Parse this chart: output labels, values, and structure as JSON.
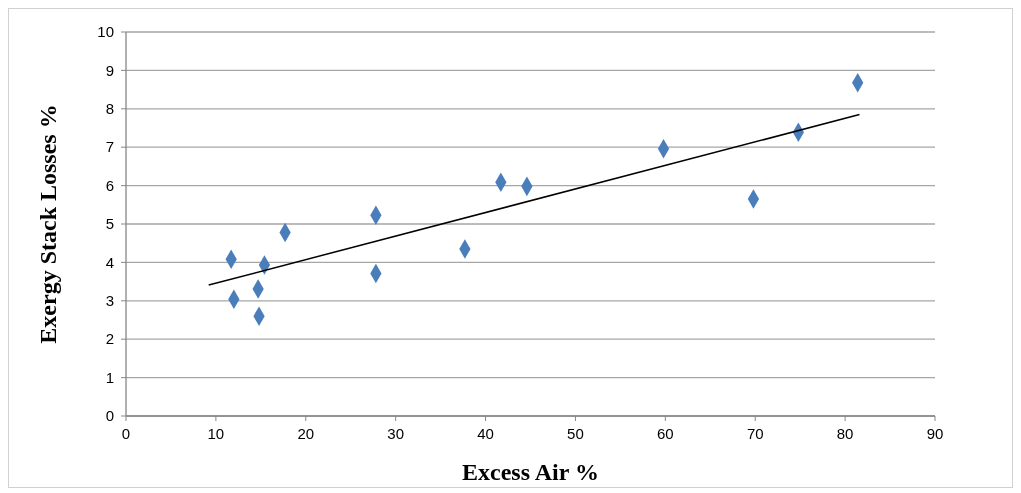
{
  "chart_data": {
    "type": "scatter",
    "xlabel": "Excess Air %",
    "ylabel": "Exergy Stack Losses %",
    "xlim": [
      0,
      90
    ],
    "xticks": [
      0,
      10,
      20,
      30,
      40,
      50,
      60,
      70,
      80,
      90
    ],
    "ylim": [
      0,
      10
    ],
    "yticks": [
      0,
      1,
      2,
      3,
      4,
      5,
      6,
      7,
      8,
      9,
      10
    ],
    "grid": "y",
    "series": [
      {
        "color": "#4a7ebb",
        "marker": "diamond",
        "x": [
          11.7,
          12.0,
          14.7,
          14.8,
          15.4,
          17.7,
          27.8,
          27.8,
          37.7,
          41.7,
          44.6,
          59.8,
          69.8,
          74.8,
          81.4
        ],
        "values": [
          4.08,
          3.04,
          3.31,
          2.6,
          3.93,
          4.78,
          5.23,
          3.71,
          4.35,
          6.09,
          5.98,
          6.96,
          5.65,
          7.39,
          8.68
        ]
      },
      {
        "type": "line",
        "color": "#000000",
        "marker": "none",
        "x": [
          9.2,
          81.6
        ],
        "values": [
          3.41,
          7.85
        ]
      }
    ]
  }
}
